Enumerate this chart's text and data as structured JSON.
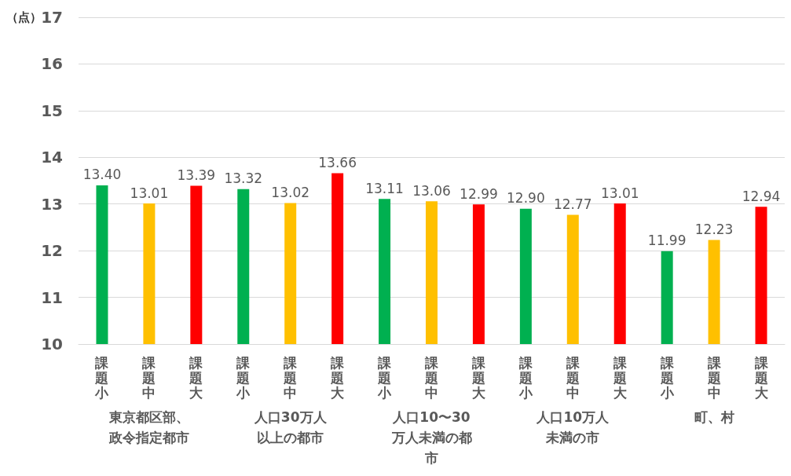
{
  "chart_data": {
    "type": "bar",
    "ylabel": "（点）",
    "categories": [
      "課題小",
      "課題中",
      "課題大",
      "課題小",
      "課題中",
      "課題大",
      "課題小",
      "課題中",
      "課題大",
      "課題小",
      "課題中",
      "課題大",
      "課題小",
      "課題中",
      "課題大"
    ],
    "values": [
      13.4,
      13.01,
      13.39,
      13.32,
      13.02,
      13.66,
      13.11,
      13.06,
      12.99,
      12.9,
      12.77,
      13.01,
      11.99,
      12.23,
      12.94
    ],
    "value_labels": [
      "13.40",
      "13.01",
      "13.39",
      "13.32",
      "13.02",
      "13.66",
      "13.11",
      "13.06",
      "12.99",
      "12.90",
      "12.77",
      "13.01",
      "11.99",
      "12.23",
      "12.94"
    ],
    "colors": [
      "#00b050",
      "#ffc000",
      "#ff0000",
      "#00b050",
      "#ffc000",
      "#ff0000",
      "#00b050",
      "#ffc000",
      "#ff0000",
      "#00b050",
      "#ffc000",
      "#ff0000",
      "#00b050",
      "#ffc000",
      "#ff0000"
    ],
    "annotations": [
      "東京都区部、政令指定都市",
      "人口30万人以上の都市",
      "人口10〜30万人未満の都市",
      "人口10万人未満の市",
      "町、村"
    ],
    "ylim": [
      10,
      17
    ],
    "yticks": [
      10,
      11,
      12,
      13,
      14,
      15,
      16,
      17
    ],
    "grid": "y"
  }
}
